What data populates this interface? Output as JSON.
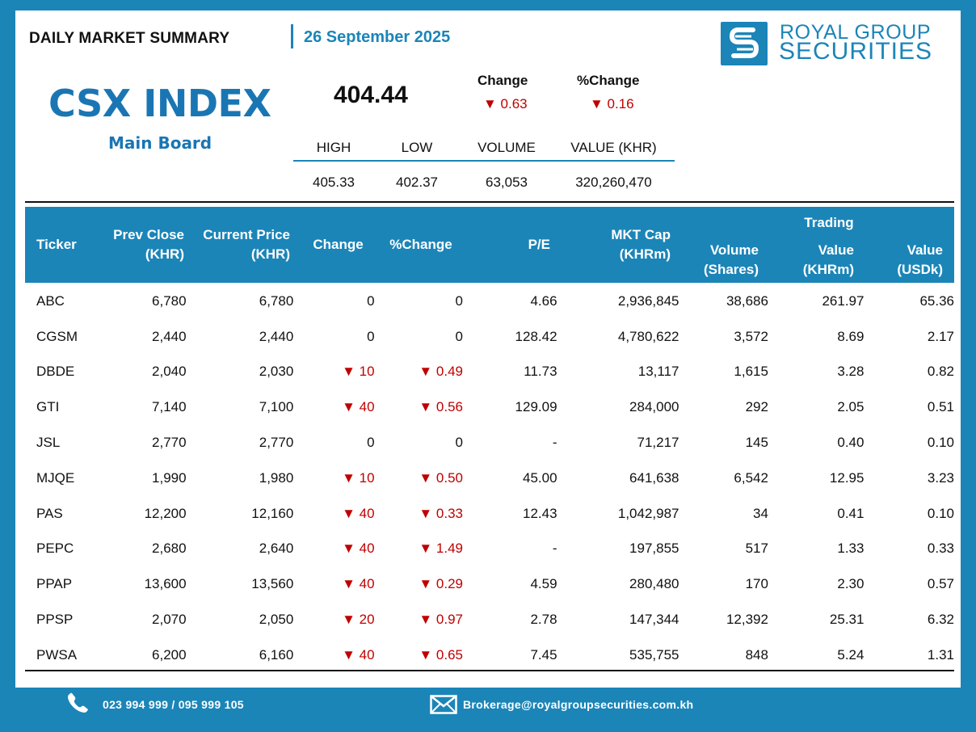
{
  "header": {
    "title": "DAILY MARKET SUMMARY",
    "date": "26 September 2025",
    "logo_line1": "ROYAL GROUP",
    "logo_line2": "SECURITIES"
  },
  "index": {
    "name": "CSX INDEX",
    "board": "Main Board",
    "value": "404.44",
    "change_label": "Change",
    "pchange_label": "%Change",
    "change": "▼ 0.63",
    "pchange": "▼ 0.16",
    "stats_labels": [
      "HIGH",
      "LOW",
      "VOLUME",
      "VALUE (KHR)"
    ],
    "stats_values": [
      "405.33",
      "402.37",
      "63,053",
      "320,260,470"
    ]
  },
  "table": {
    "headers": {
      "ticker": "Ticker",
      "prev_close_1": "Prev Close",
      "prev_close_2": "(KHR)",
      "current_price_1": "Current Price",
      "current_price_2": "(KHR)",
      "change": "Change",
      "pchange": "%Change",
      "pe": "P/E",
      "mktcap_1": "MKT Cap",
      "mktcap_2": "(KHRm)",
      "trading": "Trading",
      "volume_1": "Volume",
      "volume_2": "(Shares)",
      "value_khr_1": "Value",
      "value_khr_2": "(KHRm)",
      "value_usd_1": "Value",
      "value_usd_2": "(USDk)"
    },
    "rows": [
      [
        "ABC",
        "6,780",
        "6,780",
        "0",
        "0",
        "4.66",
        "2,936,845",
        "38,686",
        "261.97",
        "65.36"
      ],
      [
        "CGSM",
        "2,440",
        "2,440",
        "0",
        "0",
        "128.42",
        "4,780,622",
        "3,572",
        "8.69",
        "2.17"
      ],
      [
        "DBDE",
        "2,040",
        "2,030",
        "▼ 10",
        "▼ 0.49",
        "11.73",
        "13,117",
        "1,615",
        "3.28",
        "0.82"
      ],
      [
        "GTI",
        "7,140",
        "7,100",
        "▼ 40",
        "▼ 0.56",
        "129.09",
        "284,000",
        "292",
        "2.05",
        "0.51"
      ],
      [
        "JSL",
        "2,770",
        "2,770",
        "0",
        "0",
        "-",
        "71,217",
        "145",
        "0.40",
        "0.10"
      ],
      [
        "MJQE",
        "1,990",
        "1,980",
        "▼ 10",
        "▼ 0.50",
        "45.00",
        "641,638",
        "6,542",
        "12.95",
        "3.23"
      ],
      [
        "PAS",
        "12,200",
        "12,160",
        "▼ 40",
        "▼ 0.33",
        "12.43",
        "1,042,987",
        "34",
        "0.41",
        "0.10"
      ],
      [
        "PEPC",
        "2,680",
        "2,640",
        "▼ 40",
        "▼ 1.49",
        "-",
        "197,855",
        "517",
        "1.33",
        "0.33"
      ],
      [
        "PPAP",
        "13,600",
        "13,560",
        "▼ 40",
        "▼ 0.29",
        "4.59",
        "280,480",
        "170",
        "2.30",
        "0.57"
      ],
      [
        "PPSP",
        "2,070",
        "2,050",
        "▼ 20",
        "▼ 0.97",
        "2.78",
        "147,344",
        "12,392",
        "25.31",
        "6.32"
      ],
      [
        "PWSA",
        "6,200",
        "6,160",
        "▼ 40",
        "▼ 0.65",
        "7.45",
        "535,755",
        "848",
        "5.24",
        "1.31"
      ]
    ]
  },
  "footer": {
    "phone_icon": "phone-icon",
    "phone": "023 994 999 / 095 999 105",
    "email_icon": "mail-icon",
    "email": "Brokerage@royalgroupsecurities.com.kh"
  },
  "colors": {
    "brand_blue": "#1b85b8",
    "title_blue": "#1a76b3",
    "down_red": "#c00000"
  }
}
